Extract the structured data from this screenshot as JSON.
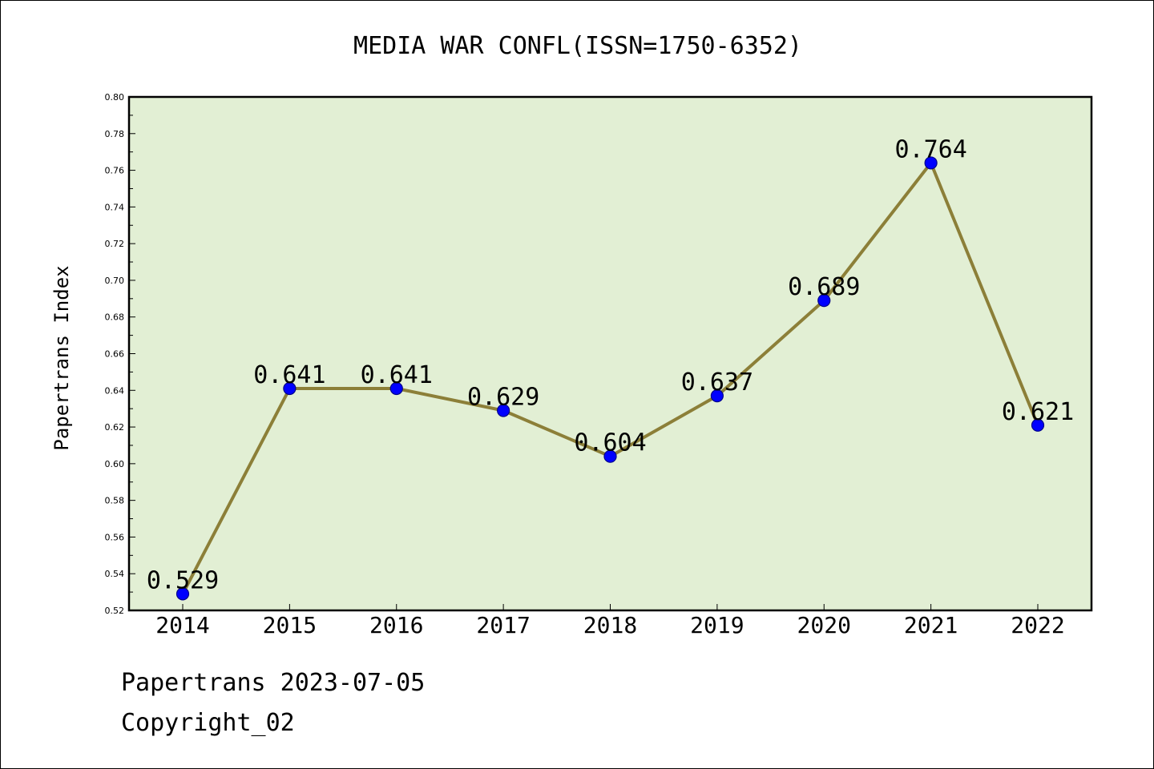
{
  "chart_data": {
    "type": "line",
    "title": "MEDIA WAR CONFL(ISSN=1750-6352)",
    "xlabel": "",
    "ylabel": "Papertrans Index",
    "categories": [
      "2014",
      "2015",
      "2016",
      "2017",
      "2018",
      "2019",
      "2020",
      "2021",
      "2022"
    ],
    "values": [
      0.529,
      0.641,
      0.641,
      0.629,
      0.604,
      0.637,
      0.689,
      0.764,
      0.621
    ],
    "data_labels": [
      "0.529",
      "0.641",
      "0.641",
      "0.629",
      "0.604",
      "0.637",
      "0.689",
      "0.764",
      "0.621"
    ],
    "ylim": [
      0.52,
      0.8
    ],
    "yticks": [
      "0.52",
      "0.54",
      "0.56",
      "0.58",
      "0.60",
      "0.62",
      "0.64",
      "0.66",
      "0.68",
      "0.70",
      "0.72",
      "0.74",
      "0.76",
      "0.78",
      "0.80"
    ],
    "grid": false,
    "legend": "none",
    "colors": {
      "plot_background": "#e2efd4",
      "line": "#8c7f38",
      "marker": "#0000ff",
      "marker_edge": "#00008b",
      "axes": "#000000"
    }
  },
  "footer": {
    "date_line": "Papertrans 2023-07-05",
    "copyright_line": "Copyright_02"
  }
}
